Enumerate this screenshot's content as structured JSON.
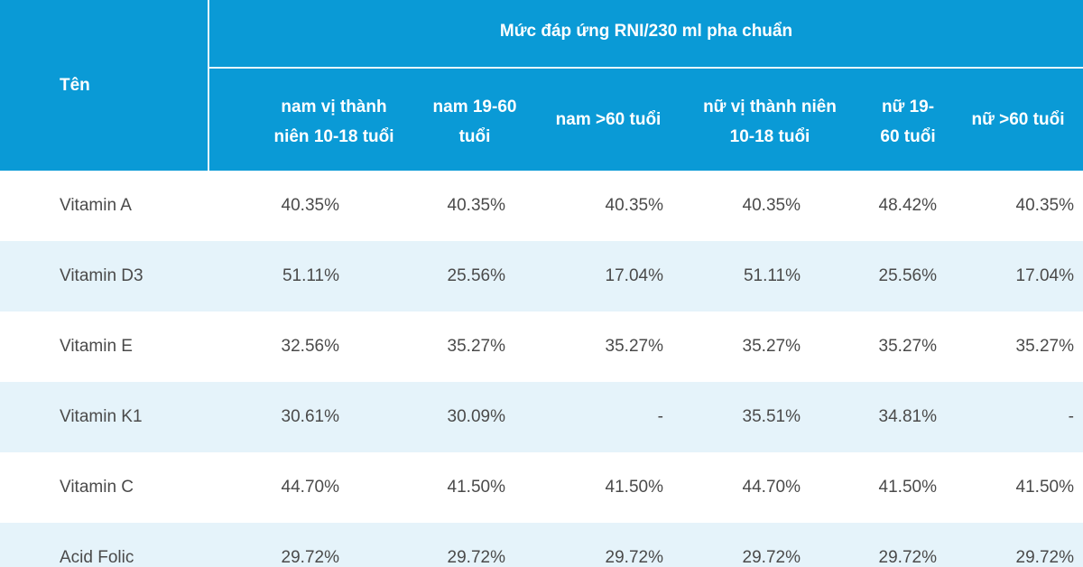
{
  "header": {
    "name_label": "Tên",
    "group_label": "Mức đáp ứng RNI/230 ml pha chuẩn",
    "columns": [
      [
        "nam vị thành",
        "niên 10-18 tuổi"
      ],
      [
        "nam 19-60",
        "tuổi"
      ],
      [
        "nam >60 tuổi"
      ],
      [
        "nữ vị thành niên",
        "10-18 tuổi"
      ],
      [
        "nữ 19-",
        "60 tuổi"
      ],
      [
        "nữ >60 tuổi"
      ]
    ]
  },
  "rows": [
    {
      "name": "Vitamin A",
      "values": [
        "40.35%",
        "40.35%",
        "40.35%",
        "40.35%",
        "48.42%",
        "40.35%"
      ]
    },
    {
      "name": "Vitamin D3",
      "values": [
        "51.11%",
        "25.56%",
        "17.04%",
        "51.11%",
        "25.56%",
        "17.04%"
      ]
    },
    {
      "name": "Vitamin E",
      "values": [
        "32.56%",
        "35.27%",
        "35.27%",
        "35.27%",
        "35.27%",
        "35.27%"
      ]
    },
    {
      "name": "Vitamin K1",
      "values": [
        "30.61%",
        "30.09%",
        "-",
        "35.51%",
        "34.81%",
        "-"
      ]
    },
    {
      "name": "Vitamin C",
      "values": [
        "44.70%",
        "41.50%",
        "41.50%",
        "44.70%",
        "41.50%",
        "41.50%"
      ]
    },
    {
      "name": "Acid Folic",
      "values": [
        "29.72%",
        "29.72%",
        "29.72%",
        "29.72%",
        "29.72%",
        "29.72%"
      ]
    }
  ],
  "colors": {
    "header_bg": "#0a9ad6",
    "alt_row_bg": "#e5f3fa",
    "text": "#4a4a4a"
  }
}
